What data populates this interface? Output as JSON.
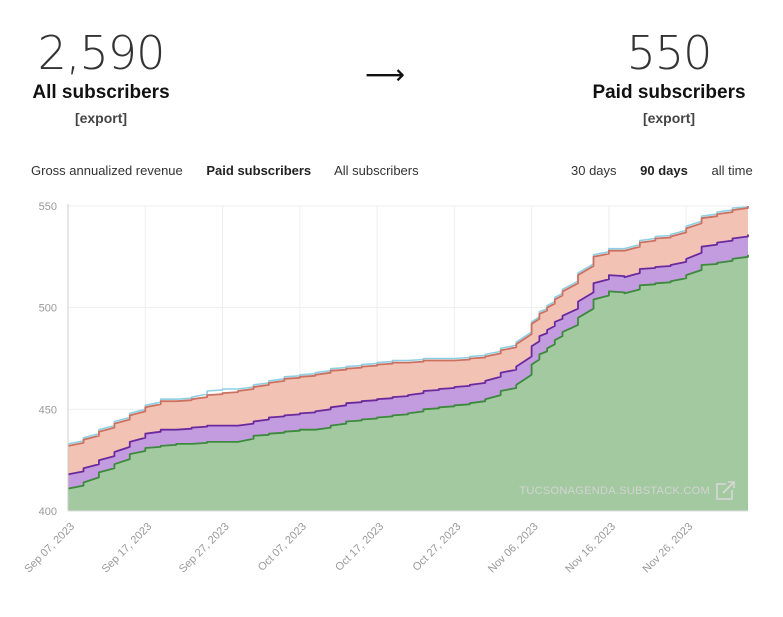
{
  "stats": {
    "all": {
      "value": "2,590",
      "label": "All subscribers",
      "export": "[export]"
    },
    "paid": {
      "value": "550",
      "label": "Paid subscribers",
      "export": "[export]"
    },
    "arrow": "⟶"
  },
  "metric_tabs": [
    "Gross annualized revenue",
    "Paid subscribers",
    "All subscribers"
  ],
  "metric_tabs_active": "Paid subscribers",
  "range_tabs": [
    "30 days",
    "90 days",
    "all time"
  ],
  "range_tabs_active": "90 days",
  "watermark": "TUCSONAGENDA.SUBSTACK.COM",
  "colors": {
    "green_fill": "#a3c9a0",
    "green_line": "#3c8a3c",
    "purple_fill": "#c39bdf",
    "purple_line": "#6a2a9e",
    "red_fill": "#f2c2b5",
    "red_line": "#cc7060",
    "blue_line": "#8ecfe3",
    "grid": "#eeeeee",
    "axis_text": "#999999"
  },
  "chart_data": {
    "type": "area",
    "stacked": true,
    "title": "Paid subscribers",
    "ylim": [
      400,
      550
    ],
    "yticks": [
      400,
      450,
      500,
      550
    ],
    "xtick_labels": [
      "Sep 07, 2023",
      "Sep 17, 2023",
      "Sep 27, 2023",
      "Oct 07, 2023",
      "Oct 17, 2023",
      "Oct 27, 2023",
      "Nov 06, 2023",
      "Nov 16, 2023",
      "Nov 26, 2023"
    ],
    "x_range_days": [
      0,
      88
    ],
    "x_tick_days": [
      0,
      10,
      20,
      30,
      40,
      50,
      60,
      70,
      80
    ],
    "series": [
      {
        "name": "base",
        "color": "#a3c9a0",
        "line": "#3c8a3c",
        "days": [
          0,
          2,
          4,
          6,
          8,
          10,
          12,
          14,
          16,
          18,
          20,
          22,
          24,
          26,
          28,
          30,
          32,
          34,
          36,
          38,
          40,
          42,
          44,
          46,
          48,
          50,
          52,
          54,
          56,
          58,
          60,
          61,
          62,
          63,
          64,
          66,
          68,
          70,
          72,
          74,
          76,
          78,
          80,
          82,
          84,
          86,
          88
        ],
        "values": [
          411,
          414,
          419,
          423,
          428,
          431,
          432,
          433,
          433,
          434,
          434,
          434,
          437,
          438,
          439,
          440,
          440,
          442,
          444,
          445,
          446,
          447,
          448,
          450,
          451,
          452,
          453,
          455,
          459,
          462,
          472,
          477,
          480,
          484,
          488,
          495,
          504,
          508,
          507,
          511,
          512,
          513,
          516,
          521,
          522,
          524,
          526
        ]
      },
      {
        "name": "purple",
        "color": "#c39bdf",
        "line": "#6a2a9e",
        "days": [
          0,
          2,
          4,
          6,
          8,
          10,
          12,
          14,
          16,
          18,
          20,
          22,
          24,
          26,
          28,
          30,
          32,
          34,
          36,
          38,
          40,
          42,
          44,
          46,
          48,
          50,
          52,
          54,
          56,
          58,
          60,
          61,
          62,
          63,
          64,
          66,
          68,
          70,
          72,
          74,
          76,
          78,
          80,
          82,
          84,
          86,
          88
        ],
        "values": [
          418,
          421,
          425,
          429,
          434,
          438,
          440,
          440,
          441,
          442,
          442,
          442,
          444,
          446,
          447,
          448,
          449,
          451,
          453,
          454,
          455,
          456,
          457,
          459,
          460,
          461,
          462,
          464,
          468,
          471,
          481,
          486,
          489,
          493,
          496,
          503,
          512,
          516,
          515,
          519,
          520,
          521,
          524,
          530,
          532,
          534,
          536
        ]
      },
      {
        "name": "red",
        "color": "#f2c2b5",
        "line": "#cc7060",
        "days": [
          0,
          2,
          4,
          6,
          8,
          10,
          12,
          14,
          16,
          18,
          20,
          22,
          24,
          26,
          28,
          30,
          32,
          34,
          36,
          38,
          40,
          42,
          44,
          46,
          48,
          50,
          52,
          54,
          56,
          58,
          60,
          61,
          62,
          63,
          64,
          66,
          68,
          70,
          72,
          74,
          76,
          78,
          80,
          82,
          84,
          86,
          88
        ],
        "values": [
          432,
          435,
          439,
          443,
          447,
          451,
          454,
          454,
          455,
          457,
          458,
          459,
          461,
          463,
          465,
          466,
          467,
          469,
          470,
          471,
          472,
          473,
          473,
          474,
          474,
          474,
          475,
          476,
          479,
          482,
          492,
          497,
          500,
          504,
          508,
          516,
          525,
          528,
          528,
          532,
          534,
          535,
          539,
          544,
          546,
          548,
          550
        ]
      },
      {
        "name": "blue",
        "color": "#8ecfe3",
        "line": "#8ecfe3",
        "days": [
          0,
          2,
          4,
          6,
          8,
          10,
          12,
          14,
          16,
          18,
          20,
          22,
          24,
          26,
          28,
          30,
          32,
          34,
          36,
          38,
          40,
          42,
          44,
          46,
          48,
          50,
          52,
          54,
          56,
          58,
          60,
          61,
          62,
          63,
          64,
          66,
          68,
          70,
          72,
          74,
          76,
          78,
          80,
          82,
          84,
          86,
          88
        ],
        "values": [
          433,
          436,
          440,
          444,
          448,
          452,
          455,
          455,
          456,
          459,
          460,
          460,
          462,
          464,
          466,
          467,
          468,
          470,
          471,
          472,
          473,
          474,
          474,
          475,
          475,
          475,
          476,
          477,
          480,
          483,
          493,
          498,
          501,
          505,
          509,
          517,
          526,
          529,
          529,
          533,
          535,
          536,
          540,
          545,
          547,
          549,
          550
        ]
      }
    ]
  }
}
